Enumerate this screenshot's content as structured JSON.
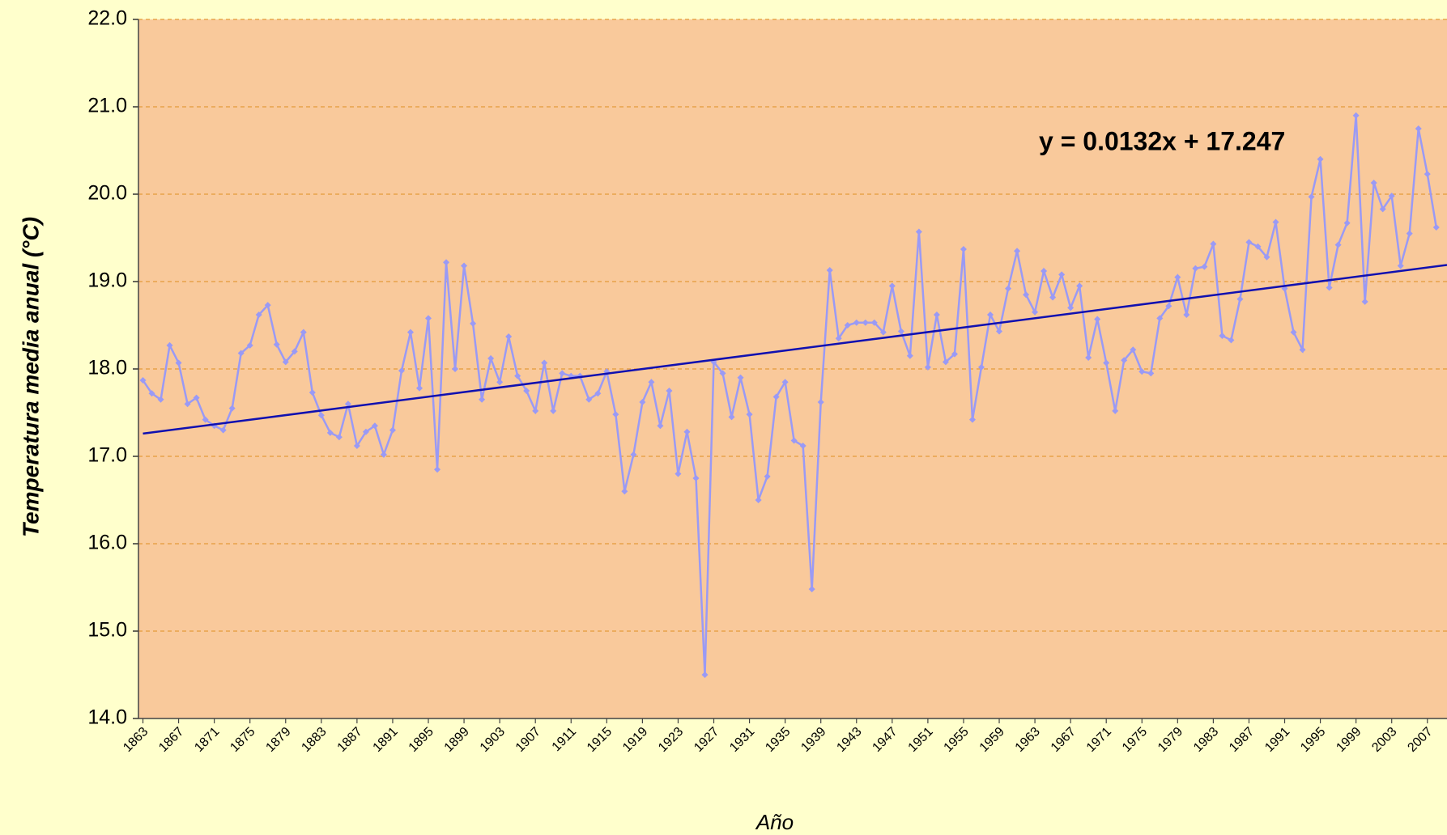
{
  "chart_data": {
    "type": "line",
    "y_label": "Temperatura media anual (°C)",
    "x_label": "Año",
    "x": [
      1863,
      1864,
      1865,
      1866,
      1867,
      1868,
      1869,
      1870,
      1871,
      1872,
      1873,
      1874,
      1875,
      1876,
      1877,
      1878,
      1879,
      1880,
      1881,
      1882,
      1883,
      1884,
      1885,
      1886,
      1887,
      1888,
      1889,
      1890,
      1891,
      1892,
      1893,
      1894,
      1895,
      1896,
      1897,
      1898,
      1899,
      1900,
      1901,
      1902,
      1903,
      1904,
      1905,
      1906,
      1907,
      1908,
      1909,
      1910,
      1911,
      1912,
      1913,
      1914,
      1915,
      1916,
      1917,
      1918,
      1919,
      1920,
      1921,
      1922,
      1923,
      1924,
      1925,
      1926,
      1927,
      1928,
      1929,
      1930,
      1931,
      1932,
      1933,
      1934,
      1935,
      1936,
      1937,
      1938,
      1939,
      1940,
      1941,
      1942,
      1943,
      1944,
      1945,
      1946,
      1947,
      1948,
      1949,
      1950,
      1951,
      1952,
      1953,
      1954,
      1955,
      1956,
      1957,
      1958,
      1959,
      1960,
      1961,
      1962,
      1963,
      1964,
      1965,
      1966,
      1967,
      1968,
      1969,
      1970,
      1971,
      1972,
      1973,
      1974,
      1975,
      1976,
      1977,
      1978,
      1979,
      1980,
      1981,
      1982,
      1983,
      1984,
      1985,
      1986,
      1987,
      1988,
      1989,
      1990,
      1991,
      1992,
      1993,
      1994,
      1995,
      1996,
      1997,
      1998,
      1999,
      2000,
      2001,
      2002,
      2003,
      2004,
      2005,
      2006,
      2007,
      2008
    ],
    "series": [
      {
        "color": "#9a9af5",
        "values": [
          17.87,
          17.72,
          17.65,
          18.27,
          18.07,
          17.6,
          17.67,
          17.42,
          17.35,
          17.3,
          17.55,
          18.18,
          18.27,
          18.62,
          18.73,
          18.28,
          18.08,
          18.2,
          18.42,
          17.73,
          17.47,
          17.27,
          17.22,
          17.6,
          17.12,
          17.28,
          17.35,
          17.02,
          17.3,
          17.98,
          18.42,
          17.78,
          18.58,
          16.85,
          19.22,
          18.0,
          19.18,
          18.52,
          17.65,
          18.12,
          17.85,
          18.37,
          17.92,
          17.75,
          17.52,
          18.07,
          17.52,
          17.95,
          17.92,
          17.92,
          17.65,
          17.72,
          17.97,
          17.48,
          16.6,
          17.02,
          17.62,
          17.85,
          17.35,
          17.75,
          16.8,
          17.28,
          16.75,
          14.5,
          18.08,
          17.95,
          17.45,
          17.9,
          17.48,
          16.5,
          16.77,
          17.68,
          17.85,
          17.18,
          17.12,
          15.48,
          17.62,
          19.13,
          18.35,
          18.5,
          18.53,
          18.53,
          18.53,
          18.42,
          18.95,
          18.43,
          18.15,
          19.57,
          18.02,
          18.62,
          18.08,
          18.17,
          19.37,
          17.42,
          18.02,
          18.62,
          18.43,
          18.92,
          19.35,
          18.85,
          18.65,
          19.12,
          18.82,
          19.08,
          18.7,
          18.95,
          18.13,
          18.57,
          18.07,
          17.52,
          18.1,
          18.22,
          17.97,
          17.95,
          18.58,
          18.72,
          19.05,
          18.62,
          19.15,
          19.17,
          19.43,
          18.38,
          18.33,
          18.8,
          19.45,
          19.4,
          19.28,
          19.68,
          18.92,
          18.42,
          18.22,
          19.97,
          20.4,
          18.93,
          19.42,
          19.67,
          20.9,
          18.77,
          20.13,
          19.83,
          19.98,
          19.18,
          19.55,
          20.75,
          20.23,
          19.62
        ]
      }
    ],
    "trendline": {
      "slope": 0.0132,
      "intercept": 17.247,
      "color": "#1010b0",
      "label": "y = 0.0132x + 17.247"
    },
    "xlim": [
      1862.5,
      2009.2
    ],
    "xticks": [
      1863,
      1867,
      1871,
      1875,
      1879,
      1883,
      1887,
      1891,
      1895,
      1899,
      1903,
      1907,
      1911,
      1915,
      1919,
      1923,
      1927,
      1931,
      1935,
      1939,
      1943,
      1947,
      1951,
      1955,
      1959,
      1963,
      1967,
      1971,
      1975,
      1979,
      1983,
      1987,
      1991,
      1995,
      1999,
      2003,
      2007
    ],
    "ylim": [
      14,
      22
    ],
    "yticks": [
      {
        "value": 14,
        "label": "14.0"
      },
      {
        "value": 15,
        "label": "15.0"
      },
      {
        "value": 16,
        "label": "16.0"
      },
      {
        "value": 17,
        "label": "17.0"
      },
      {
        "value": 18,
        "label": "18.0"
      },
      {
        "value": 19,
        "label": "19.0"
      },
      {
        "value": 20,
        "label": "20.0"
      },
      {
        "value": 21,
        "label": "21.0"
      },
      {
        "value": 22,
        "label": "22.0"
      }
    ],
    "grid": true
  }
}
